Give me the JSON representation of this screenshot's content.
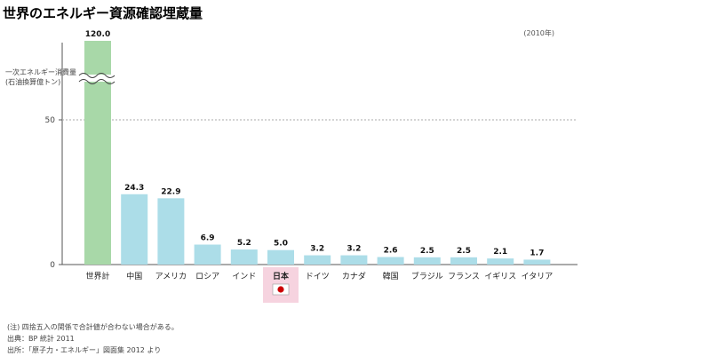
{
  "title": "世界のエネルギー資源確認埋蔵量",
  "chart_data": {
    "type": "bar",
    "year_note": "(2010年)",
    "ylabel_lines": [
      "一次エネルギー消費量",
      "(石油換算億トン)"
    ],
    "categories": [
      "世界計",
      "中国",
      "アメリカ",
      "ロシア",
      "インド",
      "日本",
      "ドイツ",
      "カナダ",
      "韓国",
      "ブラジル",
      "フランス",
      "イギリス",
      "イタリア"
    ],
    "values": [
      120.0,
      24.3,
      22.9,
      6.9,
      5.2,
      5.0,
      3.2,
      3.2,
      2.6,
      2.5,
      2.5,
      2.1,
      1.7
    ],
    "value_labels": [
      "120.0",
      "24.3",
      "22.9",
      "6.9",
      "5.2",
      "5.0",
      "3.2",
      "3.2",
      "2.6",
      "2.5",
      "2.5",
      "2.1",
      "1.7"
    ],
    "yticks": [
      0,
      50
    ],
    "ytick_labels": [
      "0",
      "50"
    ],
    "axis_break": true,
    "highlight_category": "日本",
    "colors": {
      "world": "#a8d8a8",
      "country": "#acdde8",
      "highlight_bg": "#f6d3df",
      "flag_red": "#cc0000",
      "axis": "#555555",
      "gridline": "#aaaaaa"
    }
  },
  "footnotes": {
    "note": "(注) 四捨五入の関係で合計値が合わない場合がある。",
    "source1": "出典：BP 統計 2011",
    "source2": "出所：「原子力・エネルギー」図面集 2012 より"
  }
}
